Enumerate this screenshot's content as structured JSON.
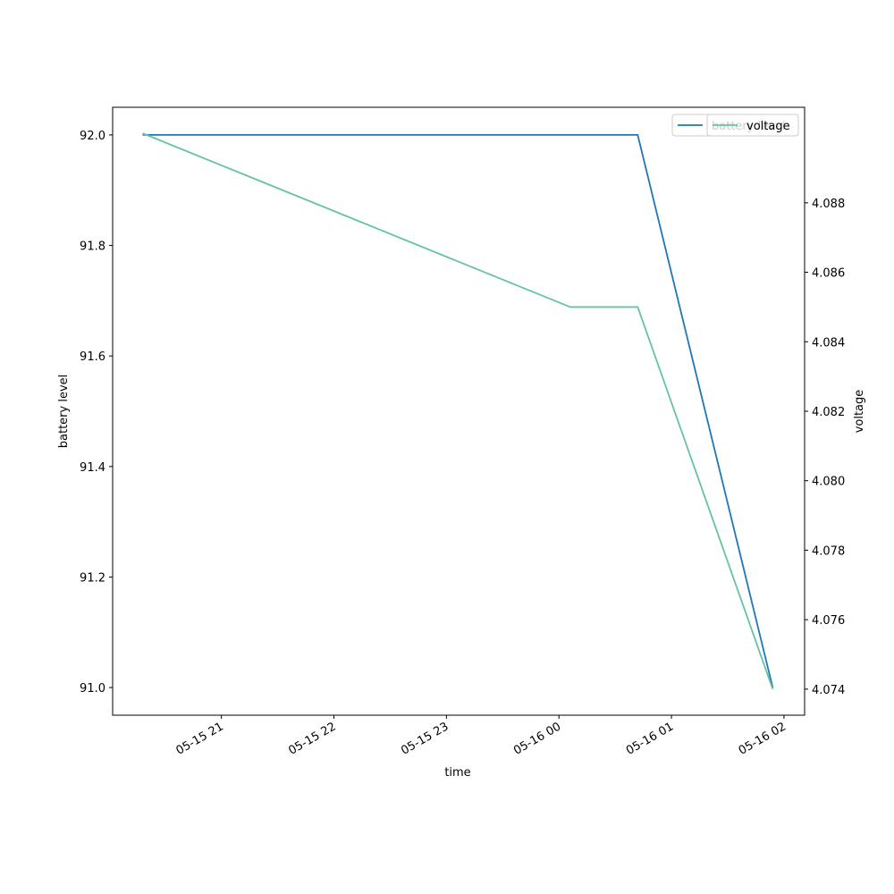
{
  "chart_data": {
    "type": "line",
    "x_label": "time",
    "y_label": "battery level",
    "y2_label": "voltage",
    "x": [
      "05-15 20:18",
      "05-16 00:06",
      "05-16 00:42",
      "05-16 01:54"
    ],
    "xlim": [
      "05-15 20:02",
      "05-16 02:11"
    ],
    "xticks": [
      "05-15 21",
      "05-15 22",
      "05-15 23",
      "05-16 00",
      "05-16 01",
      "05-16 02"
    ],
    "ylim": [
      90.95,
      92.05
    ],
    "yticks": [
      {
        "value": 91,
        "label": "91.0"
      },
      91.2,
      91.4,
      91.6,
      91.8,
      {
        "value": 92,
        "label": "92.0"
      }
    ],
    "y2lim": [
      4.07325,
      4.09075
    ],
    "y2ticks": [
      4.074,
      4.076,
      4.078,
      {
        "value": 4.08,
        "label": "4.080"
      },
      4.082,
      4.084,
      4.086,
      4.088
    ],
    "series": [
      {
        "name": "battery level",
        "color": "#1f77b4",
        "values": [
          92,
          92,
          92,
          91
        ]
      },
      {
        "name": "voltage",
        "color": "#66c2a5",
        "axis": "y2",
        "values": [
          4.09,
          4.085,
          4.085,
          4.074
        ]
      }
    ],
    "legend": "upper right"
  }
}
